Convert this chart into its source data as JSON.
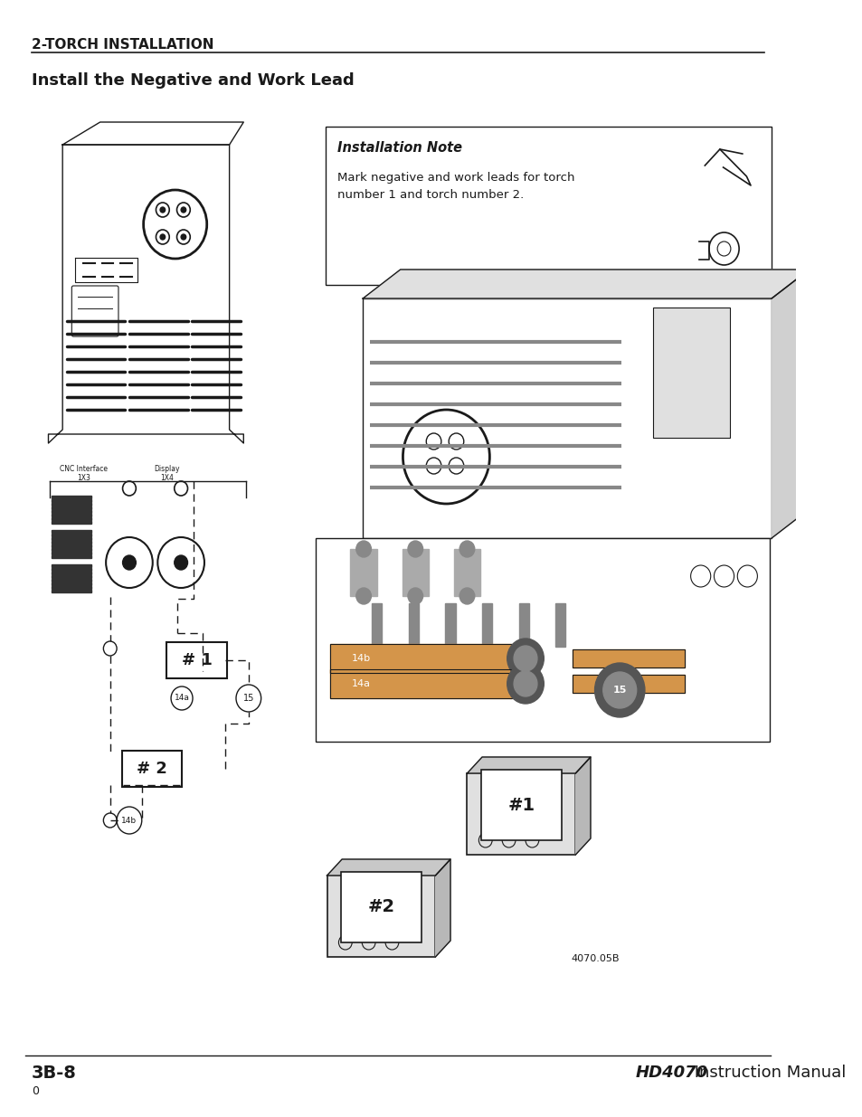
{
  "page_width": 9.54,
  "page_height": 12.35,
  "bg_color": "#ffffff",
  "header_text": "2-TORCH INSTALLATION",
  "section_title": "Install the Negative and Work Lead",
  "footer_left_bold": "3B-8",
  "footer_left_sub": "0",
  "footer_right_bold": "HD4070",
  "footer_right_normal": " Instruction Manual",
  "note_title": "Installation Note",
  "note_body": "Mark negative and work leads for torch\nnumber 1 and torch number 2.",
  "ref_code": "4070.05B",
  "text_color": "#1a1a1a",
  "line_color": "#1a1a1a"
}
